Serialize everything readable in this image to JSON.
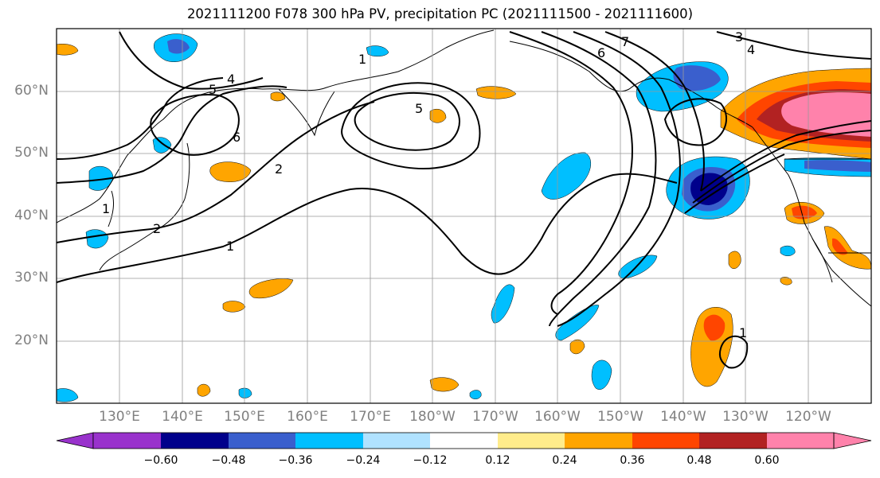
{
  "title": "2021111200 F078 300 hPa PV, precipitation PC (2021111500 - 2021111600)",
  "lat_labels": [
    "60°N",
    "50°N",
    "40°N",
    "30°N",
    "20°N"
  ],
  "lon_labels": [
    "130°E",
    "140°E",
    "150°E",
    "160°E",
    "170°E",
    "180°W",
    "170°W",
    "160°W",
    "150°W",
    "140°W",
    "130°W",
    "120°W"
  ],
  "contour_labels": [
    "1",
    "2",
    "4",
    "5",
    "6",
    "7",
    "3",
    "1",
    "2",
    "5",
    "6",
    "1",
    "4",
    "1"
  ],
  "colorbar": {
    "ticks": [
      "−0.60",
      "−0.48",
      "−0.36",
      "−0.24",
      "−0.12",
      "0.12",
      "0.24",
      "0.36",
      "0.48",
      "0.60"
    ],
    "colors": [
      "#9932cc",
      "#00008b",
      "#3a5fcd",
      "#00bfff",
      "#b0e2ff",
      "#ffffff",
      "#ffec8b",
      "#ffa500",
      "#ff4500",
      "#b22222",
      "#ff82ab"
    ]
  }
}
